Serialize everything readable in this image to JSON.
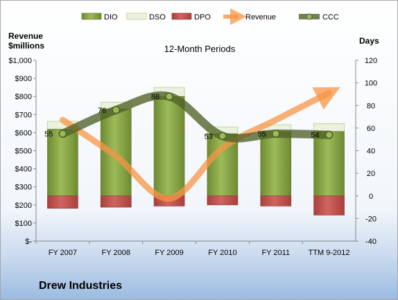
{
  "company": "Drew Industries",
  "colors": {
    "dio": "#77933C",
    "dso": "#EBF1DE",
    "dpo": "#C0504D",
    "revenue": "#F79646",
    "ccc": "#4F6228"
  },
  "chart_data": {
    "type": "bar",
    "title": "12-Month Periods",
    "ylabel_left": "Revenue $millions",
    "ylabel_right": "Days",
    "categories": [
      "FY 2007",
      "FY 2008",
      "FY 2009",
      "FY 2010",
      "FY 2011",
      "TTM 9-2012"
    ],
    "left_axis": {
      "ylim": [
        0,
        1000
      ],
      "ticks": [
        "$-",
        "$100",
        "$200",
        "$300",
        "$400",
        "$500",
        "$600",
        "$700",
        "$800",
        "$900",
        "$1,000"
      ]
    },
    "right_axis": {
      "ylim": [
        -40,
        120
      ],
      "ticks": [
        "-40",
        "-20",
        "0",
        "20",
        "40",
        "60",
        "80",
        "100",
        "120"
      ]
    },
    "legend": {
      "placement": "top",
      "entries": [
        "DIO",
        "DSO",
        "DPO",
        "Revenue",
        "CCC"
      ]
    },
    "grid": false,
    "series": [
      {
        "name": "DIO",
        "type": "stacked-bar",
        "axis": "right",
        "values": [
          59,
          77,
          88,
          55,
          57,
          57
        ]
      },
      {
        "name": "DSO",
        "type": "stacked-bar",
        "axis": "right",
        "values": [
          7,
          6,
          8,
          6,
          6,
          7
        ]
      },
      {
        "name": "DPO",
        "type": "negative-bar",
        "axis": "right",
        "values": [
          -11,
          -10,
          -9,
          -8,
          -9,
          -17
        ]
      },
      {
        "name": "Revenue",
        "type": "line-arrow",
        "axis": "left",
        "values": [
          670,
          470,
          235,
          515,
          670,
          820
        ]
      },
      {
        "name": "CCC",
        "type": "line",
        "axis": "right",
        "values": [
          55,
          76,
          88,
          53,
          55,
          54
        ],
        "data_labels": [
          "55",
          "76",
          "88",
          "53",
          "55",
          "54"
        ]
      }
    ]
  }
}
